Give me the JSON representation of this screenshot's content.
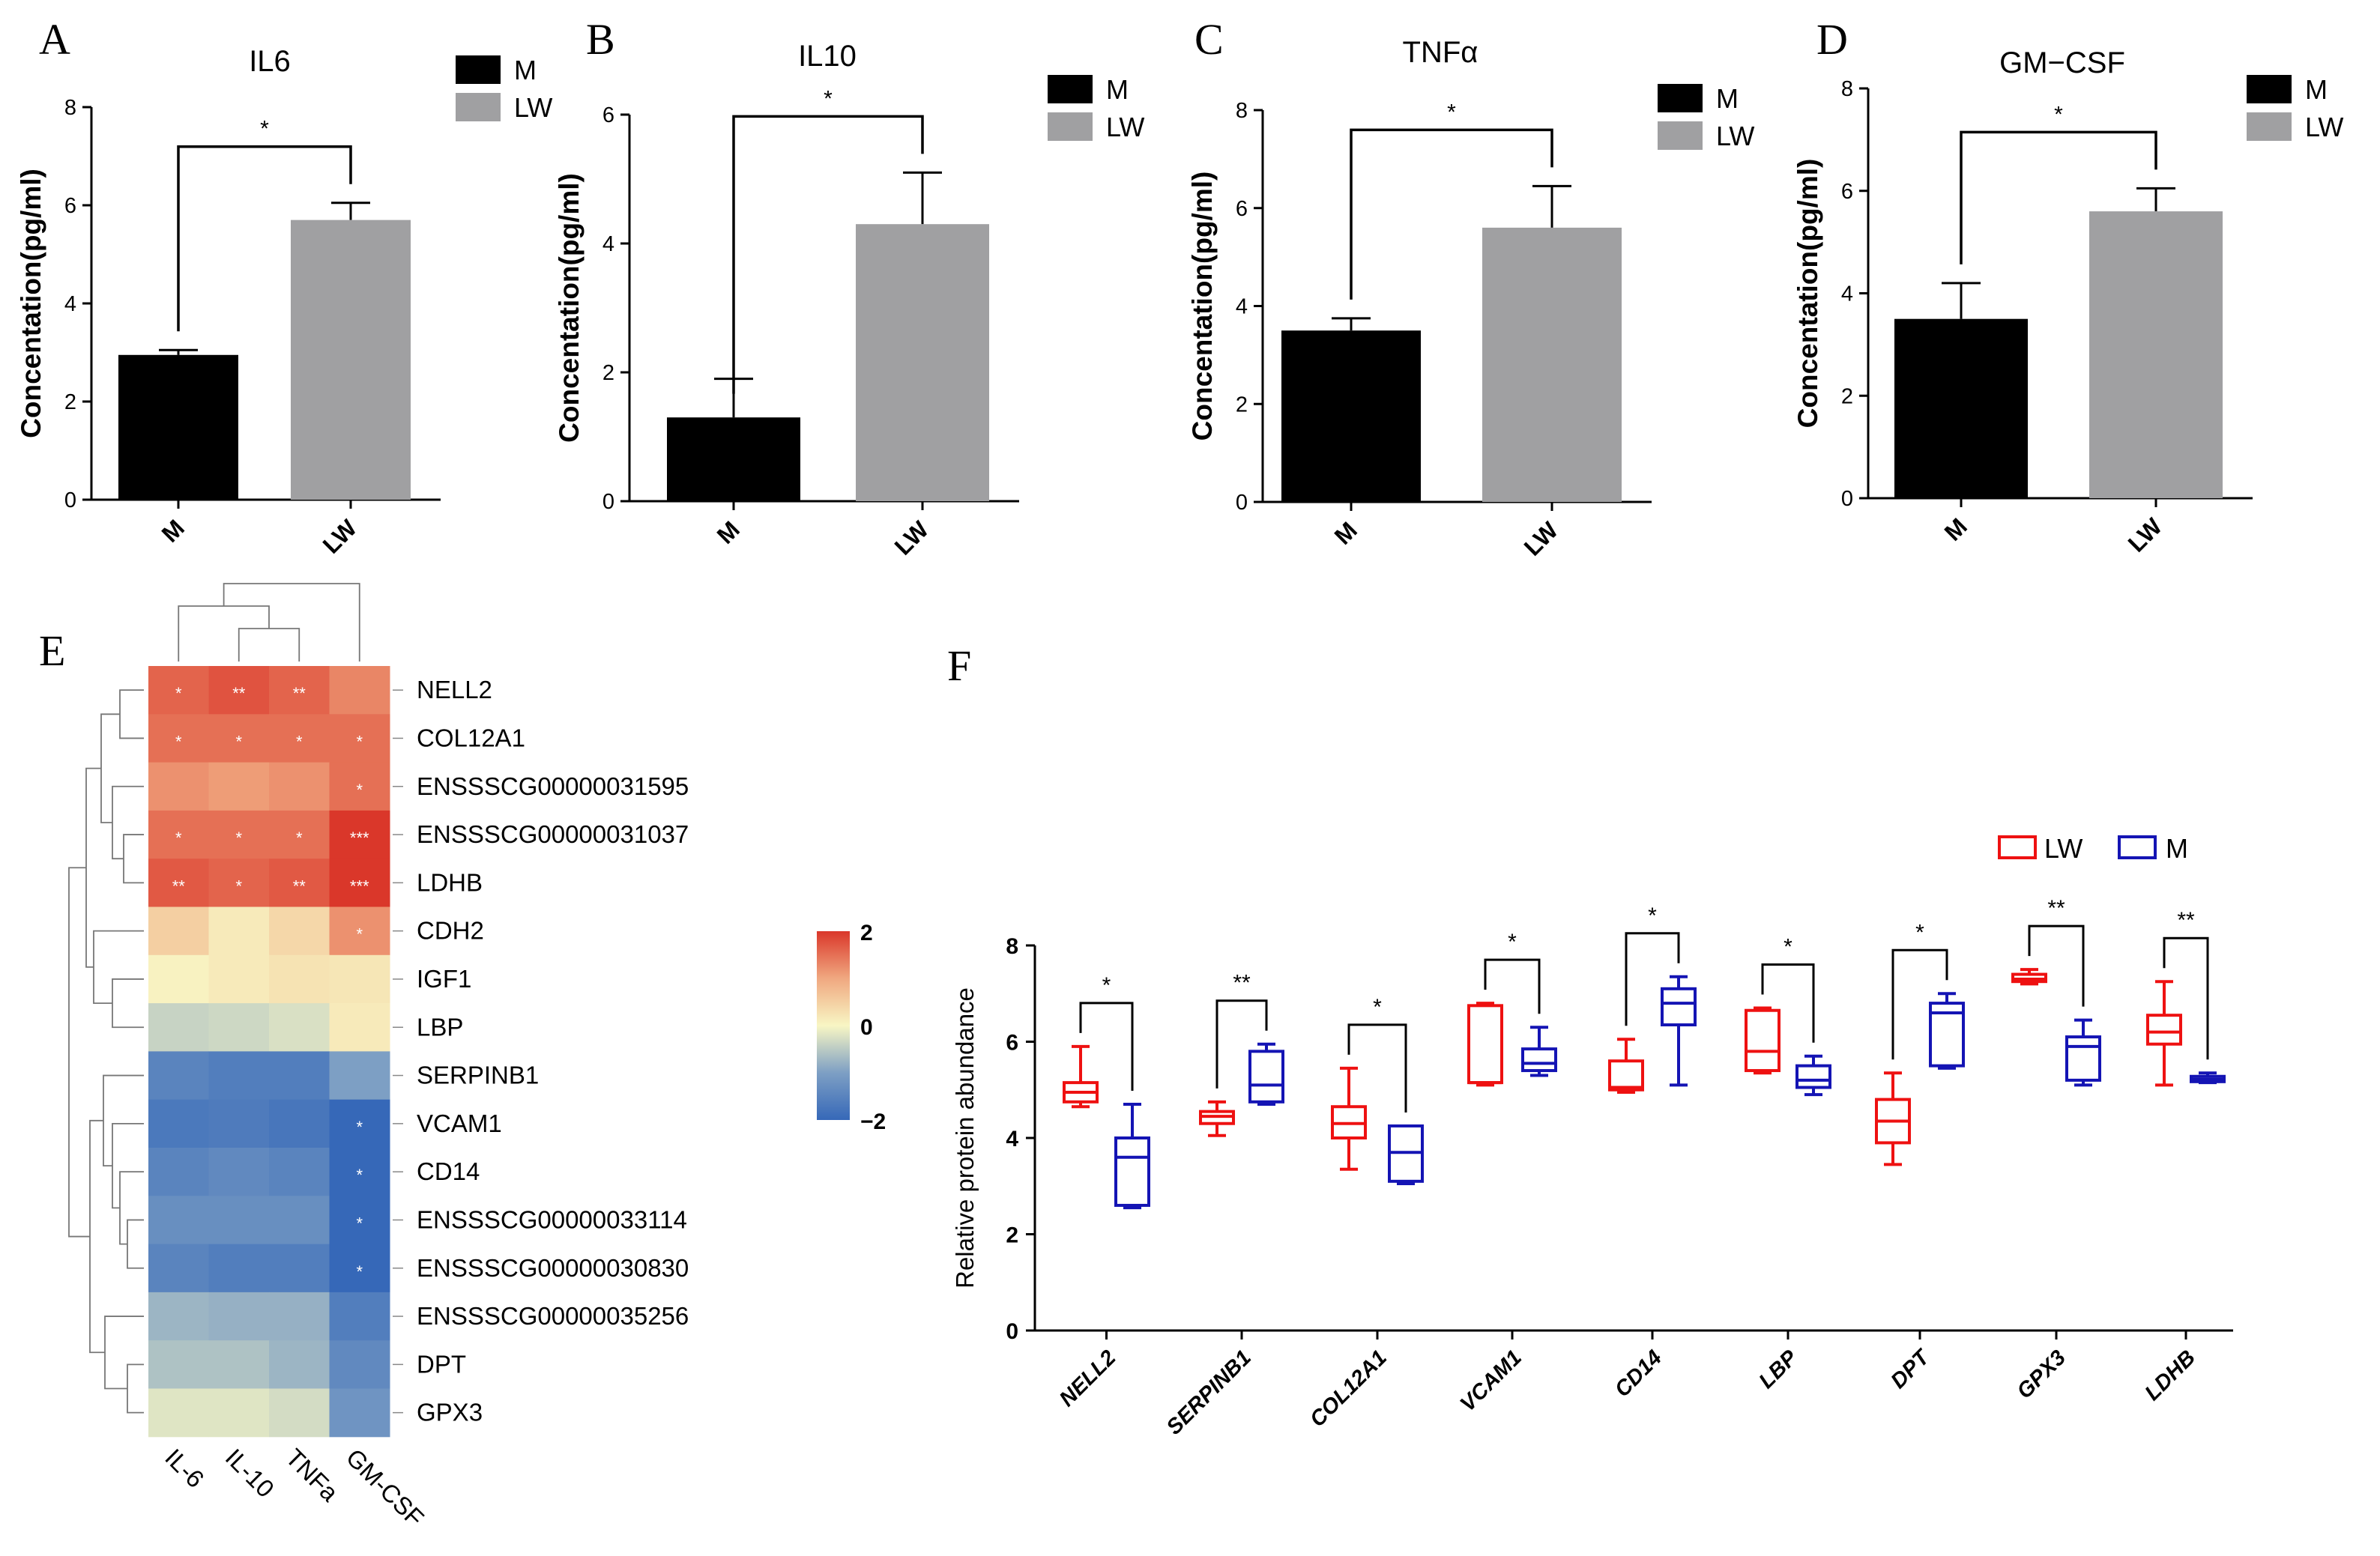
{
  "panels": {
    "A": "A",
    "B": "B",
    "C": "C",
    "D": "D",
    "E": "E",
    "F": "F"
  },
  "chart_data": [
    {
      "id": "A",
      "type": "bar",
      "title": "IL6",
      "ylabel": "Concentation(pg/ml)",
      "categories": [
        "M",
        "LW"
      ],
      "values": [
        2.95,
        5.7
      ],
      "errors": [
        0.1,
        0.35
      ],
      "colors": [
        "#000000",
        "#a0a0a2"
      ],
      "ylim": [
        0,
        8
      ],
      "yticks": [
        "0",
        "2",
        "4",
        "6",
        "8"
      ],
      "significance": "*",
      "legend": [
        "M",
        "LW"
      ]
    },
    {
      "id": "B",
      "type": "bar",
      "title": "IL10",
      "ylabel": "Concentation(pg/ml)",
      "categories": [
        "M",
        "LW"
      ],
      "values": [
        1.3,
        4.3
      ],
      "errors": [
        0.6,
        0.8
      ],
      "colors": [
        "#000000",
        "#a0a0a2"
      ],
      "ylim": [
        0,
        6
      ],
      "yticks": [
        "0",
        "2",
        "4",
        "6"
      ],
      "significance": "*",
      "legend": [
        "M",
        "LW"
      ]
    },
    {
      "id": "C",
      "type": "bar",
      "title": "TNFα",
      "ylabel": "Concentation(pg/ml)",
      "categories": [
        "M",
        "LW"
      ],
      "values": [
        3.5,
        5.6
      ],
      "errors": [
        0.25,
        0.85
      ],
      "colors": [
        "#000000",
        "#a0a0a2"
      ],
      "ylim": [
        0,
        8
      ],
      "yticks": [
        "0",
        "2",
        "4",
        "6",
        "8"
      ],
      "significance": "*",
      "legend": [
        "M",
        "LW"
      ]
    },
    {
      "id": "D",
      "type": "bar",
      "title": "GM−CSF",
      "ylabel": "Concentation(pg/ml)",
      "categories": [
        "M",
        "LW"
      ],
      "values": [
        3.5,
        5.6
      ],
      "errors": [
        0.7,
        0.45
      ],
      "colors": [
        "#000000",
        "#a0a0a2"
      ],
      "ylim": [
        0,
        8
      ],
      "yticks": [
        "0",
        "2",
        "4",
        "6",
        "8"
      ],
      "significance": "*",
      "legend": [
        "M",
        "LW"
      ]
    },
    {
      "id": "E",
      "type": "heatmap",
      "columns": [
        "IL-6",
        "IL-10",
        "TNFa",
        "GM-CSF"
      ],
      "rows": [
        "NELL2",
        "COL12A1",
        "ENSSSCG00000031595",
        "ENSSSCG00000031037",
        "LDHB",
        "CDH2",
        "IGF1",
        "LBP",
        "SERPINB1",
        "VCAM1",
        "CD14",
        "ENSSSCG00000033114",
        "ENSSSCG00000030830",
        "ENSSSCG00000035256",
        "DPT",
        "GPX3"
      ],
      "values": [
        [
          1.6,
          1.75,
          1.6,
          1.3
        ],
        [
          1.5,
          1.5,
          1.5,
          1.5
        ],
        [
          1.2,
          1.1,
          1.2,
          1.5
        ],
        [
          1.5,
          1.5,
          1.5,
          2.0
        ],
        [
          1.7,
          1.6,
          1.7,
          2.0
        ],
        [
          0.5,
          0.15,
          0.4,
          1.2
        ],
        [
          0.05,
          0.15,
          0.25,
          0.2
        ],
        [
          -0.4,
          -0.35,
          -0.25,
          0.15
        ],
        [
          -1.5,
          -1.6,
          -1.6,
          -1.0
        ],
        [
          -1.7,
          -1.65,
          -1.75,
          -2.0
        ],
        [
          -1.5,
          -1.4,
          -1.5,
          -2.0
        ],
        [
          -1.3,
          -1.3,
          -1.3,
          -2.0
        ],
        [
          -1.5,
          -1.6,
          -1.6,
          -2.0
        ],
        [
          -0.75,
          -0.8,
          -0.8,
          -1.6
        ],
        [
          -0.6,
          -0.6,
          -0.75,
          -1.4
        ],
        [
          -0.2,
          -0.2,
          -0.3,
          -1.2
        ]
      ],
      "stars": [
        [
          "*",
          "**",
          "**",
          ""
        ],
        [
          "*",
          "*",
          "*",
          "*"
        ],
        [
          "",
          "",
          "",
          "*"
        ],
        [
          "*",
          "*",
          "*",
          "***"
        ],
        [
          "**",
          "*",
          "**",
          "***"
        ],
        [
          "",
          "",
          "",
          "*"
        ],
        [
          "",
          "",
          "",
          ""
        ],
        [
          "",
          "",
          "",
          ""
        ],
        [
          "",
          "",
          "",
          ""
        ],
        [
          "",
          "",
          "",
          "*"
        ],
        [
          "",
          "",
          "",
          "*"
        ],
        [
          "",
          "",
          "",
          "*"
        ],
        [
          "",
          "",
          "",
          "*"
        ],
        [
          "",
          "",
          "",
          ""
        ],
        [
          "",
          "",
          "",
          ""
        ],
        [
          "",
          "",
          "",
          ""
        ]
      ],
      "colorbar": {
        "ticks": [
          "2",
          "0",
          "−2"
        ],
        "range": [
          -2,
          2
        ]
      }
    },
    {
      "id": "F",
      "type": "boxplot",
      "ylabel": "Relative protein abundance",
      "ylim": [
        0,
        8
      ],
      "yticks": [
        "0",
        "2",
        "4",
        "6",
        "8"
      ],
      "series": [
        {
          "name": "LW",
          "color": "#ee1111"
        },
        {
          "name": "M",
          "color": "#1414b4"
        }
      ],
      "categories": [
        "NELL2",
        "SERPINB1",
        "COL12A1",
        "VCAM1",
        "CD14",
        "LBP",
        "DPT",
        "GPX3",
        "LDHB"
      ],
      "significance": [
        "*",
        "**",
        "*",
        "*",
        "*",
        "*",
        "*",
        "**",
        "**"
      ],
      "LW": [
        [
          4.65,
          4.75,
          4.95,
          5.15,
          5.9
        ],
        [
          4.05,
          4.3,
          4.45,
          4.55,
          4.75
        ],
        [
          3.35,
          4.0,
          4.3,
          4.65,
          5.45
        ],
        [
          5.1,
          5.15,
          5.15,
          6.75,
          6.8
        ],
        [
          4.95,
          5.0,
          5.05,
          5.6,
          6.05
        ],
        [
          5.35,
          5.4,
          5.8,
          6.65,
          6.7
        ],
        [
          3.45,
          3.9,
          4.35,
          4.8,
          5.35
        ],
        [
          7.2,
          7.25,
          7.3,
          7.4,
          7.5
        ],
        [
          5.1,
          5.95,
          6.2,
          6.55,
          7.25
        ]
      ],
      "M": [
        [
          2.55,
          2.6,
          3.6,
          4.0,
          4.7
        ],
        [
          4.7,
          4.75,
          5.1,
          5.8,
          5.95
        ],
        [
          3.05,
          3.1,
          3.7,
          4.25,
          4.25
        ],
        [
          5.3,
          5.4,
          5.55,
          5.85,
          6.3
        ],
        [
          5.1,
          6.35,
          6.8,
          7.1,
          7.35
        ],
        [
          4.9,
          5.05,
          5.2,
          5.5,
          5.7
        ],
        [
          5.45,
          5.5,
          6.6,
          6.8,
          7.0
        ],
        [
          5.1,
          5.2,
          5.9,
          6.1,
          6.45
        ],
        [
          5.15,
          5.17,
          5.22,
          5.28,
          5.35
        ]
      ]
    }
  ]
}
